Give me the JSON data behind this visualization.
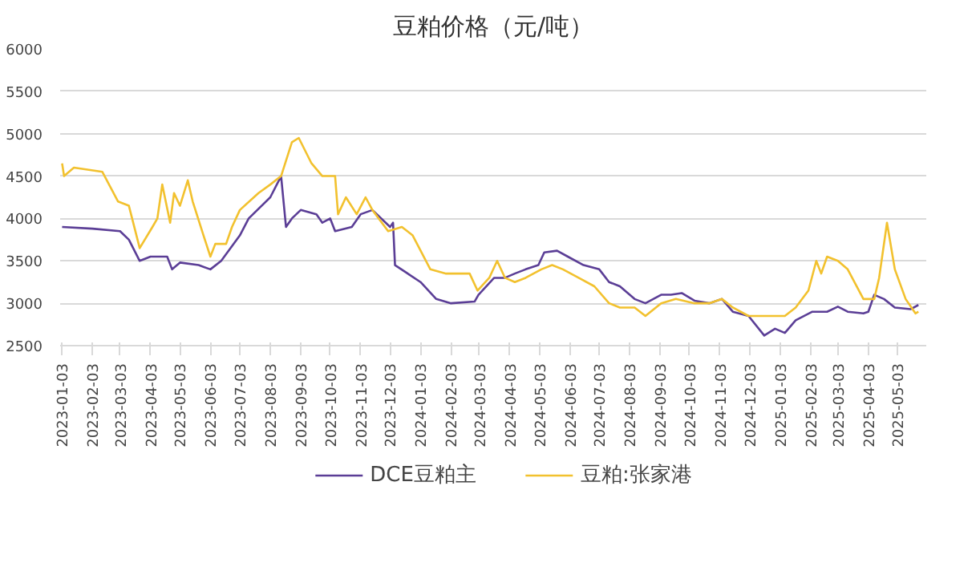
{
  "chart_data": {
    "type": "line",
    "title": "豆粕价格（元/吨）",
    "xlim": [
      "2023-01-01",
      "2025-06-01"
    ],
    "xticks": [
      "2023-01-03",
      "2023-02-03",
      "2023-03-03",
      "2023-04-03",
      "2023-05-03",
      "2023-06-03",
      "2023-07-03",
      "2023-08-03",
      "2023-09-03",
      "2023-10-03",
      "2023-11-03",
      "2023-12-03",
      "2024-01-03",
      "2024-02-03",
      "2024-03-03",
      "2024-04-03",
      "2024-05-03",
      "2024-06-03",
      "2024-07-03",
      "2024-08-03",
      "2024-09-03",
      "2024-10-03",
      "2024-11-03",
      "2024-12-03",
      "2025-01-03",
      "2025-02-03",
      "2025-03-03",
      "2025-04-03",
      "2025-05-03"
    ],
    "ylim": [
      2500,
      6000
    ],
    "yticks": [
      2500,
      3000,
      3500,
      4000,
      4500,
      5000,
      5500,
      6000
    ],
    "grid": "y",
    "legend": "bottom",
    "marker": "none",
    "line_style": "solid",
    "series": [
      {
        "name": "DCE豆粕主",
        "color": "#5b3e96",
        "x": [
          "2023-01-03",
          "2023-02-03",
          "2023-03-03",
          "2023-03-12",
          "2023-03-23",
          "2023-04-03",
          "2023-04-20",
          "2023-04-25",
          "2023-05-03",
          "2023-05-22",
          "2023-06-03",
          "2023-06-14",
          "2023-07-03",
          "2023-07-12",
          "2023-08-03",
          "2023-08-14",
          "2023-08-19",
          "2023-08-25",
          "2023-09-03",
          "2023-09-19",
          "2023-09-25",
          "2023-10-03",
          "2023-10-08",
          "2023-10-25",
          "2023-11-03",
          "2023-11-15",
          "2023-12-03",
          "2023-12-06",
          "2023-12-08",
          "2024-01-03",
          "2024-01-19",
          "2024-02-03",
          "2024-02-27",
          "2024-03-02",
          "2024-03-18",
          "2024-03-29",
          "2024-04-08",
          "2024-04-19",
          "2024-05-02",
          "2024-05-08",
          "2024-05-21",
          "2024-06-01",
          "2024-06-17",
          "2024-07-03",
          "2024-07-13",
          "2024-07-24",
          "2024-08-08",
          "2024-08-19",
          "2024-09-04",
          "2024-09-14",
          "2024-09-25",
          "2024-10-08",
          "2024-10-23",
          "2024-11-05",
          "2024-11-16",
          "2024-12-02",
          "2024-12-18",
          "2024-12-29",
          "2025-01-08",
          "2025-01-19",
          "2025-02-05",
          "2025-02-20",
          "2025-03-03",
          "2025-03-13",
          "2025-03-29",
          "2025-04-03",
          "2025-04-09",
          "2025-04-19",
          "2025-04-30",
          "2025-05-16",
          "2025-05-24"
        ],
        "values": [
          3900,
          3880,
          3850,
          3750,
          3500,
          3550,
          3550,
          3400,
          3480,
          3450,
          3400,
          3500,
          3800,
          4000,
          4250,
          4500,
          3900,
          4000,
          4100,
          4050,
          3950,
          4000,
          3850,
          3900,
          4050,
          4100,
          3900,
          3950,
          3450,
          3250,
          3050,
          3000,
          3020,
          3100,
          3300,
          3300,
          3350,
          3400,
          3450,
          3600,
          3620,
          3550,
          3450,
          3400,
          3250,
          3200,
          3050,
          3000,
          3100,
          3100,
          3120,
          3030,
          3000,
          3050,
          2900,
          2850,
          2620,
          2700,
          2650,
          2800,
          2900,
          2900,
          2960,
          2900,
          2880,
          2900,
          3100,
          3050,
          2950,
          2930,
          2980
        ]
      },
      {
        "name": "豆粕:张家港",
        "color": "#f2c12e",
        "x": [
          "2023-01-03",
          "2023-01-05",
          "2023-01-15",
          "2023-02-13",
          "2023-03-01",
          "2023-03-12",
          "2023-03-23",
          "2023-04-05",
          "2023-04-10",
          "2023-04-15",
          "2023-04-23",
          "2023-04-27",
          "2023-05-03",
          "2023-05-11",
          "2023-05-16",
          "2023-05-27",
          "2023-06-03",
          "2023-06-08",
          "2023-06-19",
          "2023-06-25",
          "2023-07-03",
          "2023-07-22",
          "2023-08-03",
          "2023-08-14",
          "2023-08-25",
          "2023-09-01",
          "2023-09-14",
          "2023-09-25",
          "2023-10-08",
          "2023-10-11",
          "2023-10-19",
          "2023-10-30",
          "2023-11-08",
          "2023-11-15",
          "2023-12-01",
          "2023-12-15",
          "2023-12-26",
          "2024-01-13",
          "2024-01-29",
          "2024-02-13",
          "2024-02-22",
          "2024-03-01",
          "2024-03-13",
          "2024-03-21",
          "2024-03-29",
          "2024-04-08",
          "2024-04-19",
          "2024-05-05",
          "2024-05-16",
          "2024-05-27",
          "2024-06-12",
          "2024-06-28",
          "2024-07-13",
          "2024-07-24",
          "2024-08-08",
          "2024-08-19",
          "2024-09-04",
          "2024-09-19",
          "2024-10-08",
          "2024-10-23",
          "2024-11-05",
          "2024-11-16",
          "2024-12-02",
          "2024-12-18",
          "2025-01-08",
          "2025-01-19",
          "2025-02-01",
          "2025-02-09",
          "2025-02-14",
          "2025-02-20",
          "2025-03-03",
          "2025-03-13",
          "2025-03-29",
          "2025-04-09",
          "2025-04-14",
          "2025-04-22",
          "2025-04-30",
          "2025-05-11",
          "2025-05-21",
          "2025-05-24"
        ],
        "values": [
          4650,
          4500,
          4600,
          4550,
          4200,
          4150,
          3650,
          3900,
          4000,
          4400,
          3950,
          4300,
          4150,
          4450,
          4200,
          3800,
          3550,
          3700,
          3700,
          3900,
          4100,
          4300,
          4400,
          4500,
          4900,
          4950,
          4650,
          4500,
          4500,
          4050,
          4250,
          4050,
          4250,
          4100,
          3850,
          3900,
          3800,
          3400,
          3350,
          3350,
          3350,
          3150,
          3300,
          3500,
          3300,
          3250,
          3300,
          3400,
          3450,
          3400,
          3300,
          3200,
          3000,
          2950,
          2950,
          2850,
          3000,
          3050,
          3000,
          3000,
          3050,
          2950,
          2850,
          2850,
          2850,
          2950,
          3150,
          3500,
          3350,
          3550,
          3500,
          3400,
          3050,
          3050,
          3300,
          3950,
          3400,
          3050,
          2880,
          2900
        ]
      }
    ]
  }
}
